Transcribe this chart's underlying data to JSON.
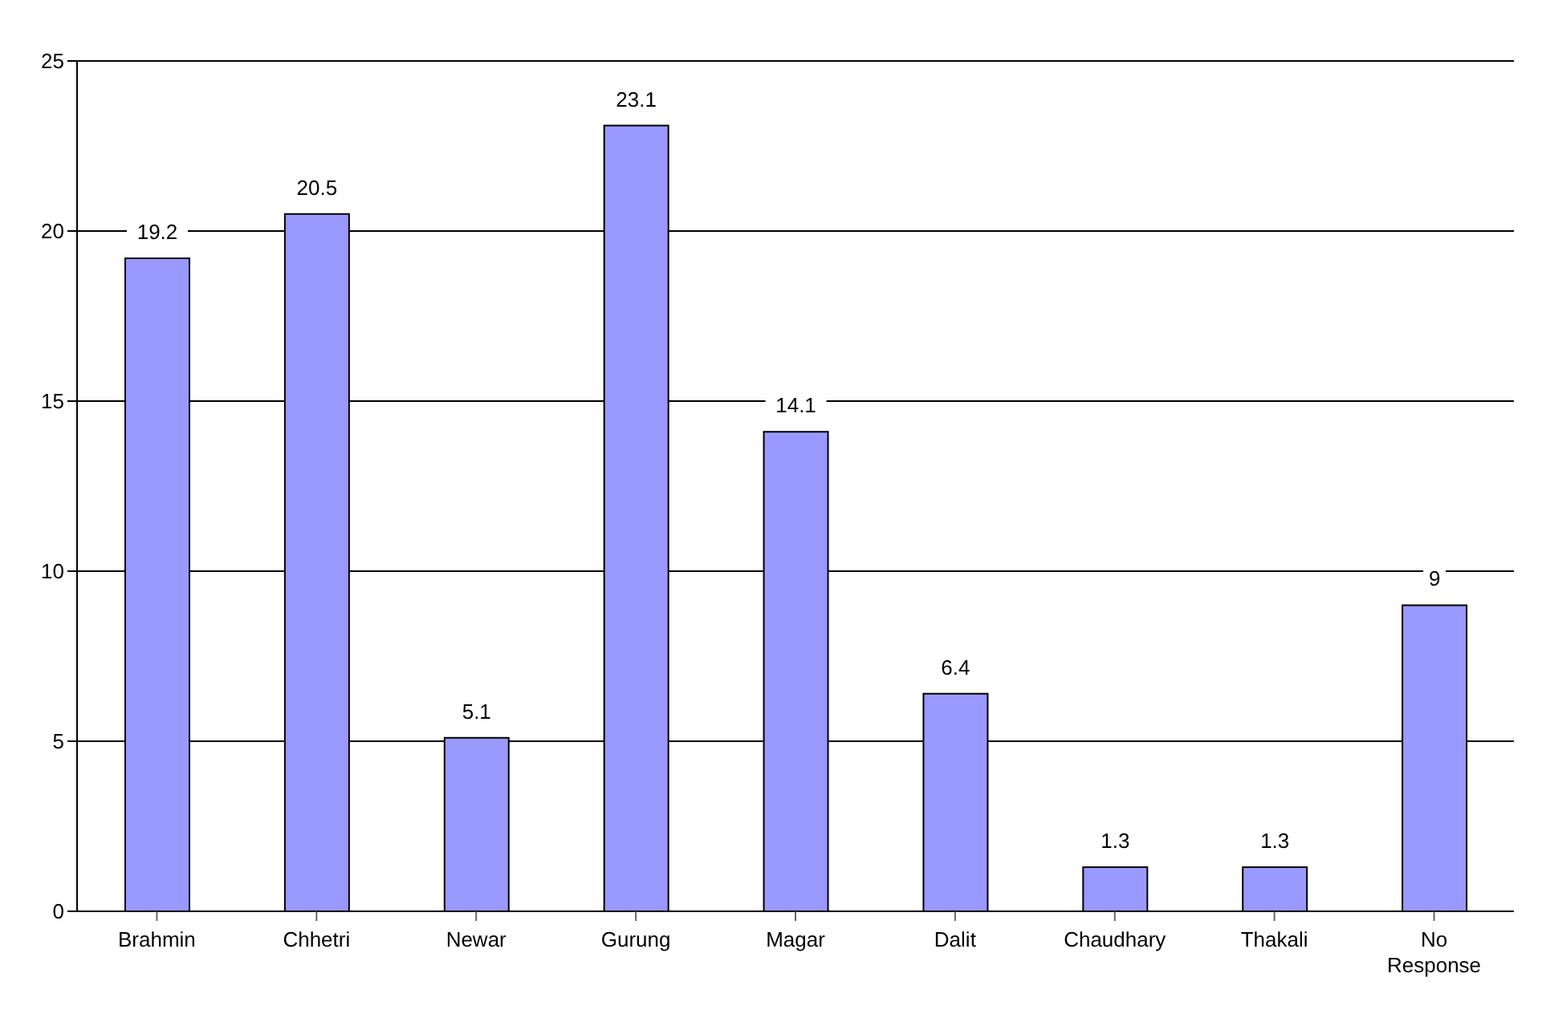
{
  "chart_data": {
    "type": "bar",
    "categories": [
      "Brahmin",
      "Chhetri",
      "Newar",
      "Gurung",
      "Magar",
      "Dalit",
      "Chaudhary",
      "Thakali",
      "No Response"
    ],
    "values": [
      19.2,
      20.5,
      5.1,
      23.1,
      14.1,
      6.4,
      1.3,
      1.3,
      9
    ],
    "color": "#9999ff",
    "ylim": [
      0,
      25
    ],
    "yticks": [
      0,
      5,
      10,
      15,
      20,
      25
    ],
    "grid": "y",
    "data_labels": true
  }
}
